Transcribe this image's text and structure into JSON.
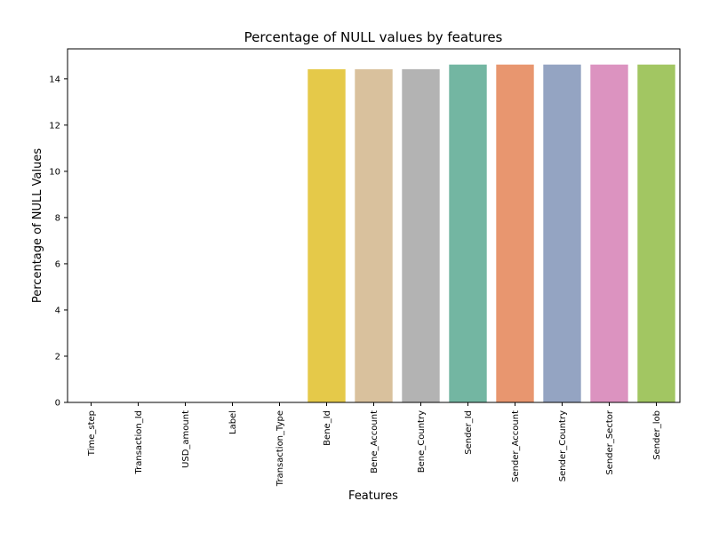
{
  "chart_data": {
    "type": "bar",
    "title": "Percentage of NULL values by features",
    "xlabel": "Features",
    "ylabel": "Percentage of NULL Values",
    "ylim": [
      0,
      15.3
    ],
    "yticks": [
      0,
      2,
      4,
      6,
      8,
      10,
      12,
      14
    ],
    "grid": false,
    "categories": [
      "Time_step",
      "Transaction_Id",
      "USD_amount",
      "Label",
      "Transaction_Type",
      "Bene_Id",
      "Bene_Account",
      "Bene_Country",
      "Sender_Id",
      "Sender_Account",
      "Sender_Country",
      "Sender_Sector",
      "Sender_lob"
    ],
    "values": [
      0,
      0,
      0,
      0,
      0,
      14.42,
      14.42,
      14.42,
      14.62,
      14.62,
      14.62,
      14.62,
      14.62
    ],
    "colors": [
      "#66c2a5",
      "#fc8d62",
      "#8da0cb",
      "#e78ac3",
      "#a6d854",
      "#e5c949",
      "#d9c19d",
      "#b3b3b3",
      "#73b6a2",
      "#e8966f",
      "#94a4c2",
      "#dc93c0",
      "#a2c662"
    ]
  }
}
